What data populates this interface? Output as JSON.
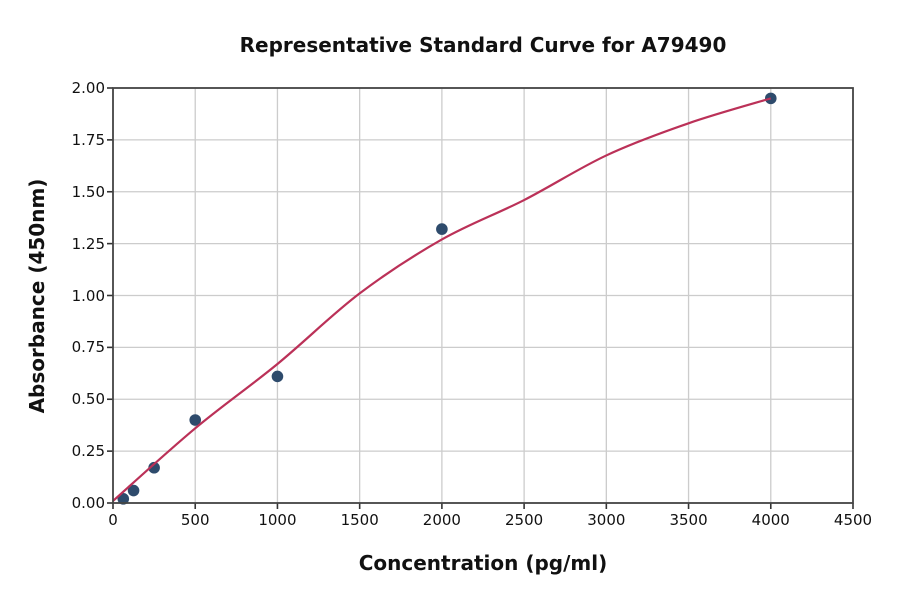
{
  "chart_data": {
    "type": "scatter",
    "title": "Representative Standard Curve for A79490",
    "xlabel": "Concentration (pg/ml)",
    "ylabel": "Absorbance (450nm)",
    "xlim": [
      0,
      4500
    ],
    "ylim": [
      0,
      2.0
    ],
    "grid": true,
    "legend": "none",
    "xticks": [
      0,
      500,
      1000,
      1500,
      2000,
      2500,
      3000,
      3500,
      4000,
      4500
    ],
    "xtick_labels": [
      "0",
      "500",
      "1000",
      "1500",
      "2000",
      "2500",
      "3000",
      "3500",
      "4000",
      "4500"
    ],
    "yticks": [
      0,
      0.25,
      0.5,
      0.75,
      1.0,
      1.25,
      1.5,
      1.75,
      2.0
    ],
    "ytick_labels": [
      "0.00",
      "0.25",
      "0.50",
      "0.75",
      "1.00",
      "1.25",
      "1.50",
      "1.75",
      "2.00"
    ],
    "series": [
      {
        "name": "standard-points",
        "type": "scatter",
        "color": "#2e4b6c",
        "x": [
          62.5,
          125,
          250,
          500,
          1000,
          2000,
          4000
        ],
        "y": [
          0.02,
          0.06,
          0.17,
          0.4,
          0.61,
          1.32,
          1.95
        ]
      },
      {
        "name": "4pl-fit-curve",
        "type": "line",
        "color": "#bb3158",
        "x": [
          0,
          500,
          1000,
          1500,
          2000,
          2500,
          3000,
          3500,
          4000
        ],
        "y": [
          0.01,
          0.36,
          0.67,
          1.01,
          1.27,
          1.46,
          1.675,
          1.83,
          1.95
        ]
      }
    ]
  },
  "style": {
    "background": "#ffffff",
    "grid_color": "#cccccc",
    "spine_color": "#454545",
    "tick_color": "#333333",
    "marker_color": "#2e4b6c",
    "line_color": "#bb3158"
  }
}
